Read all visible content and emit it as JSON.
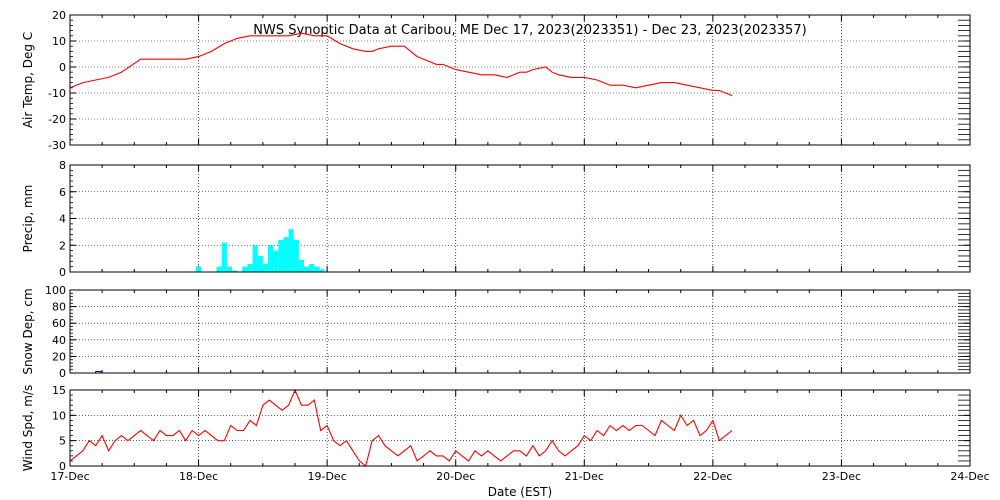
{
  "chart_data": {
    "title": "NWS Synoptic Data at Caribou, ME   Dec 17, 2023(2023351) - Dec 23, 2023(2023357)",
    "xlabel": "Date (EST)",
    "x_ticks": [
      "17-Dec",
      "18-Dec",
      "19-Dec",
      "20-Dec",
      "21-Dec",
      "22-Dec",
      "23-Dec",
      "24-Dec"
    ],
    "xlim": [
      0,
      7
    ],
    "grid": "dotted vertical lines at each day",
    "panels": [
      {
        "type": "line",
        "ylabel": "Air Temp, Deg C",
        "ylim": [
          -30,
          20
        ],
        "yticks": [
          "20",
          "10",
          "0",
          "-10",
          "-20",
          "-30"
        ],
        "series": [
          {
            "color": "#ff0000",
            "x": [
              0,
              0.1,
              0.2,
              0.3,
              0.4,
              0.55,
              0.65,
              0.7,
              0.8,
              0.9,
              1.0,
              1.1,
              1.2,
              1.3,
              1.4,
              1.5,
              1.6,
              1.7,
              1.8,
              1.9,
              2.0,
              2.1,
              2.2,
              2.3,
              2.35,
              2.4,
              2.5,
              2.55,
              2.6,
              2.7,
              2.8,
              2.85,
              2.9,
              3.0,
              3.1,
              3.2,
              3.3,
              3.4,
              3.5,
              3.55,
              3.6,
              3.7,
              3.75,
              3.8,
              3.9,
              4.0,
              4.1,
              4.2,
              4.3,
              4.4,
              4.5,
              4.6,
              4.7,
              4.8,
              4.9,
              5.0,
              5.05,
              5.1,
              5.15
            ],
            "y": [
              -8,
              -6,
              -5,
              -4,
              -2,
              3,
              3,
              3,
              3,
              3,
              4,
              6,
              9,
              11,
              12,
              12,
              12,
              12,
              13,
              12,
              12,
              9,
              7,
              6,
              6,
              7,
              8,
              8,
              8,
              4,
              2,
              1,
              1,
              -1,
              -2,
              -3,
              -3,
              -4,
              -2,
              -2,
              -1,
              0,
              -2,
              -3,
              -4,
              -4,
              -5,
              -7,
              -7,
              -8,
              -7,
              -6,
              -6,
              -7,
              -8,
              -9,
              -9,
              -10,
              -11
            ]
          }
        ]
      },
      {
        "type": "bar",
        "ylabel": "Precip, mm",
        "ylim": [
          0,
          8
        ],
        "yticks": [
          "8",
          "6",
          "4",
          "2",
          "0"
        ],
        "bar_width": 0.04,
        "color": "#00ffff",
        "x": [
          0.98,
          1.1,
          1.14,
          1.18,
          1.22,
          1.26,
          1.34,
          1.38,
          1.42,
          1.46,
          1.5,
          1.54,
          1.58,
          1.62,
          1.66,
          1.7,
          1.74,
          1.78,
          1.82,
          1.86,
          1.9,
          1.94
        ],
        "values": [
          0.4,
          0,
          0.4,
          2.2,
          0.4,
          0.1,
          0.4,
          0.6,
          2.0,
          1.2,
          0.6,
          2.0,
          1.6,
          2.4,
          2.6,
          3.2,
          2.4,
          0.9,
          0.4,
          0.6,
          0.4,
          0.2
        ]
      },
      {
        "type": "bar",
        "ylabel": "Snow Dep, cm",
        "ylim": [
          0,
          100
        ],
        "yticks": [
          "100",
          "80",
          "60",
          "40",
          "20",
          "0"
        ],
        "bar_width": 0.04,
        "color": "#000080",
        "x": [
          0.2
        ],
        "values": [
          1
        ]
      },
      {
        "type": "line",
        "ylabel": "Wind Spd, m/s",
        "ylim": [
          0,
          15
        ],
        "yticks": [
          "15",
          "10",
          "5",
          "0"
        ],
        "series": [
          {
            "color": "#ff0000",
            "x": [
              0,
              0.05,
              0.1,
              0.15,
              0.2,
              0.25,
              0.3,
              0.35,
              0.4,
              0.45,
              0.5,
              0.55,
              0.6,
              0.65,
              0.7,
              0.75,
              0.8,
              0.85,
              0.9,
              0.95,
              1.0,
              1.05,
              1.1,
              1.15,
              1.2,
              1.25,
              1.3,
              1.35,
              1.4,
              1.45,
              1.5,
              1.55,
              1.6,
              1.65,
              1.7,
              1.75,
              1.8,
              1.85,
              1.9,
              1.95,
              2.0,
              2.05,
              2.1,
              2.15,
              2.2,
              2.25,
              2.3,
              2.35,
              2.4,
              2.45,
              2.5,
              2.55,
              2.6,
              2.65,
              2.7,
              2.75,
              2.8,
              2.85,
              2.9,
              2.95,
              3.0,
              3.05,
              3.1,
              3.15,
              3.2,
              3.25,
              3.3,
              3.35,
              3.4,
              3.45,
              3.5,
              3.55,
              3.6,
              3.65,
              3.7,
              3.75,
              3.8,
              3.85,
              3.9,
              3.95,
              4.0,
              4.05,
              4.1,
              4.15,
              4.2,
              4.25,
              4.3,
              4.35,
              4.4,
              4.45,
              4.5,
              4.55,
              4.6,
              4.65,
              4.7,
              4.75,
              4.8,
              4.85,
              4.9,
              4.95,
              5.0,
              5.05,
              5.1,
              5.15
            ],
            "y": [
              1,
              2,
              3,
              5,
              4,
              6,
              3,
              5,
              6,
              5,
              6,
              7,
              6,
              5,
              7,
              6,
              6,
              7,
              5,
              7,
              6,
              7,
              6,
              5,
              5,
              8,
              7,
              7,
              9,
              8,
              12,
              13,
              12,
              11,
              12,
              15,
              12,
              12,
              13,
              7,
              8,
              5,
              4,
              5,
              3,
              1,
              0,
              5,
              6,
              4,
              3,
              2,
              3,
              4,
              1,
              2,
              3,
              2,
              2,
              1,
              3,
              2,
              1,
              3,
              2,
              3,
              2,
              1,
              2,
              3,
              3,
              2,
              4,
              2,
              3,
              5,
              3,
              2,
              3,
              4,
              6,
              5,
              7,
              6,
              8,
              7,
              8,
              7,
              8,
              8,
              7,
              6,
              9,
              8,
              7,
              10,
              8,
              9,
              6,
              7,
              9,
              5,
              6,
              7
            ]
          }
        ]
      }
    ]
  }
}
